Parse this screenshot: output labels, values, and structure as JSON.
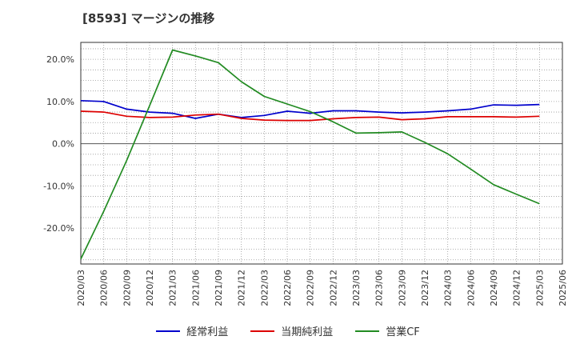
{
  "title": "[8593]  マージンの推移",
  "chart_data": {
    "type": "line",
    "x": [
      "2020/03",
      "2020/06",
      "2020/09",
      "2020/12",
      "2021/03",
      "2021/06",
      "2021/09",
      "2021/12",
      "2022/03",
      "2022/06",
      "2022/09",
      "2022/12",
      "2023/03",
      "2023/06",
      "2023/09",
      "2023/12",
      "2024/03",
      "2024/06",
      "2024/09",
      "2024/12",
      "2025/03",
      "2025/06"
    ],
    "ylim": [
      -28.5,
      24
    ],
    "yticks": [
      20,
      10,
      0,
      -10,
      -20
    ],
    "ytick_labels": [
      "20.0%",
      "10.0%",
      "0.0%",
      "-10.0%",
      "-20.0%"
    ],
    "grid": true,
    "legend_position": "bottom",
    "series": [
      {
        "name": "経常利益",
        "color": "#0000cc",
        "values": [
          10.2,
          10.0,
          8.2,
          7.5,
          7.2,
          6.0,
          7.0,
          6.2,
          6.7,
          7.7,
          7.2,
          7.8,
          7.8,
          7.5,
          7.3,
          7.5,
          7.8,
          8.2,
          9.2,
          9.1,
          9.3,
          null
        ]
      },
      {
        "name": "当期純利益",
        "color": "#dd0000",
        "values": [
          7.7,
          7.5,
          6.5,
          6.2,
          6.3,
          6.8,
          7.0,
          6.0,
          5.6,
          5.5,
          5.5,
          5.9,
          6.2,
          6.3,
          5.7,
          5.9,
          6.4,
          6.4,
          6.4,
          6.3,
          6.5,
          null
        ]
      },
      {
        "name": "営業CF",
        "color": "#228b22",
        "values": [
          -27.3,
          -16.0,
          -4.0,
          9.0,
          22.2,
          20.8,
          19.2,
          14.7,
          11.2,
          9.4,
          7.6,
          5.2,
          2.5,
          2.6,
          2.8,
          0.3,
          -2.4,
          -6.0,
          -9.7,
          -12.0,
          -14.2,
          null
        ]
      }
    ]
  }
}
